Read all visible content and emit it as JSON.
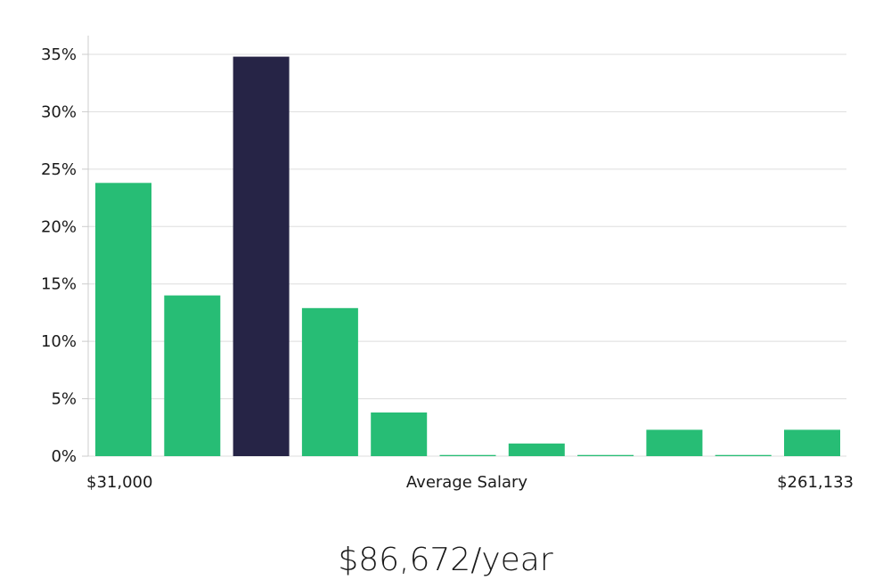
{
  "chart_data": {
    "type": "bar",
    "title": "",
    "xlabel": "Average Salary",
    "ylabel": "",
    "x_min_label": "$31,000",
    "x_max_label": "$261,133",
    "ylim": [
      0,
      35
    ],
    "yticks": [
      0,
      5,
      10,
      15,
      20,
      25,
      30,
      35
    ],
    "ytick_labels": [
      "0%",
      "5%",
      "10%",
      "15%",
      "20%",
      "25%",
      "30%",
      "35%"
    ],
    "values": [
      23.8,
      14.0,
      34.8,
      12.9,
      3.8,
      0.1,
      1.1,
      0.1,
      2.3,
      0.1,
      2.3
    ],
    "highlight_index": 2,
    "grid": true
  },
  "colors": {
    "bar": "#27bd75",
    "highlight": "#262446",
    "grid": "#dddddd",
    "axis": "#cccccc",
    "text": "#1a1a1a"
  },
  "summary": {
    "salary": "$86,672/year"
  }
}
